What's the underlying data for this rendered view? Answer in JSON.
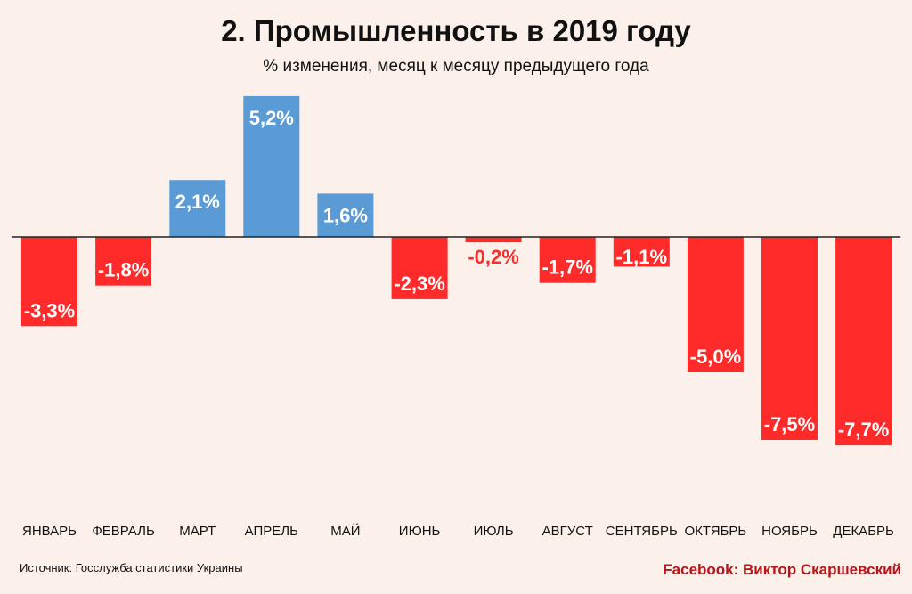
{
  "header": {
    "title": "2. Промышленность в 2019 году",
    "subtitle": "% изменения, месяц к месяцу предыдущего года"
  },
  "footer": {
    "source": "Источник: Госслужба статистики Украины",
    "credit": "Facebook: Виктор Скаршевский"
  },
  "colors": {
    "positive": "#5b9bd5",
    "negative": "#ff2a2a",
    "label_negative_small": "#ff2a2a",
    "axis": "#222222",
    "background": "#fbf1ea"
  },
  "chart_data": {
    "type": "bar",
    "title": "2. Промышленность в 2019 году",
    "subtitle": "% изменения, месяц к месяцу предыдущего года",
    "categories": [
      "ЯНВАРЬ",
      "ФЕВРАЛЬ",
      "МАРТ",
      "АПРЕЛЬ",
      "МАЙ",
      "ИЮНЬ",
      "ИЮЛЬ",
      "АВГУСТ",
      "СЕНТЯБРЬ",
      "ОКТЯБРЬ",
      "НОЯБРЬ",
      "ДЕКАБРЬ"
    ],
    "values": [
      -3.3,
      -1.8,
      2.1,
      5.2,
      1.6,
      -2.3,
      -0.2,
      -1.7,
      -1.1,
      -5.0,
      -7.5,
      -7.7
    ],
    "data_labels": [
      "-3,3%",
      "-1,8%",
      "2,1%",
      "5,2%",
      "1,6%",
      "-2,3%",
      "-0,2%",
      "-1,7%",
      "-1,1%",
      "-5,0%",
      "-7,5%",
      "-7,7%"
    ],
    "ylim": [
      -7.7,
      5.2
    ],
    "grid": false,
    "xlabel": "",
    "ylabel": ""
  }
}
